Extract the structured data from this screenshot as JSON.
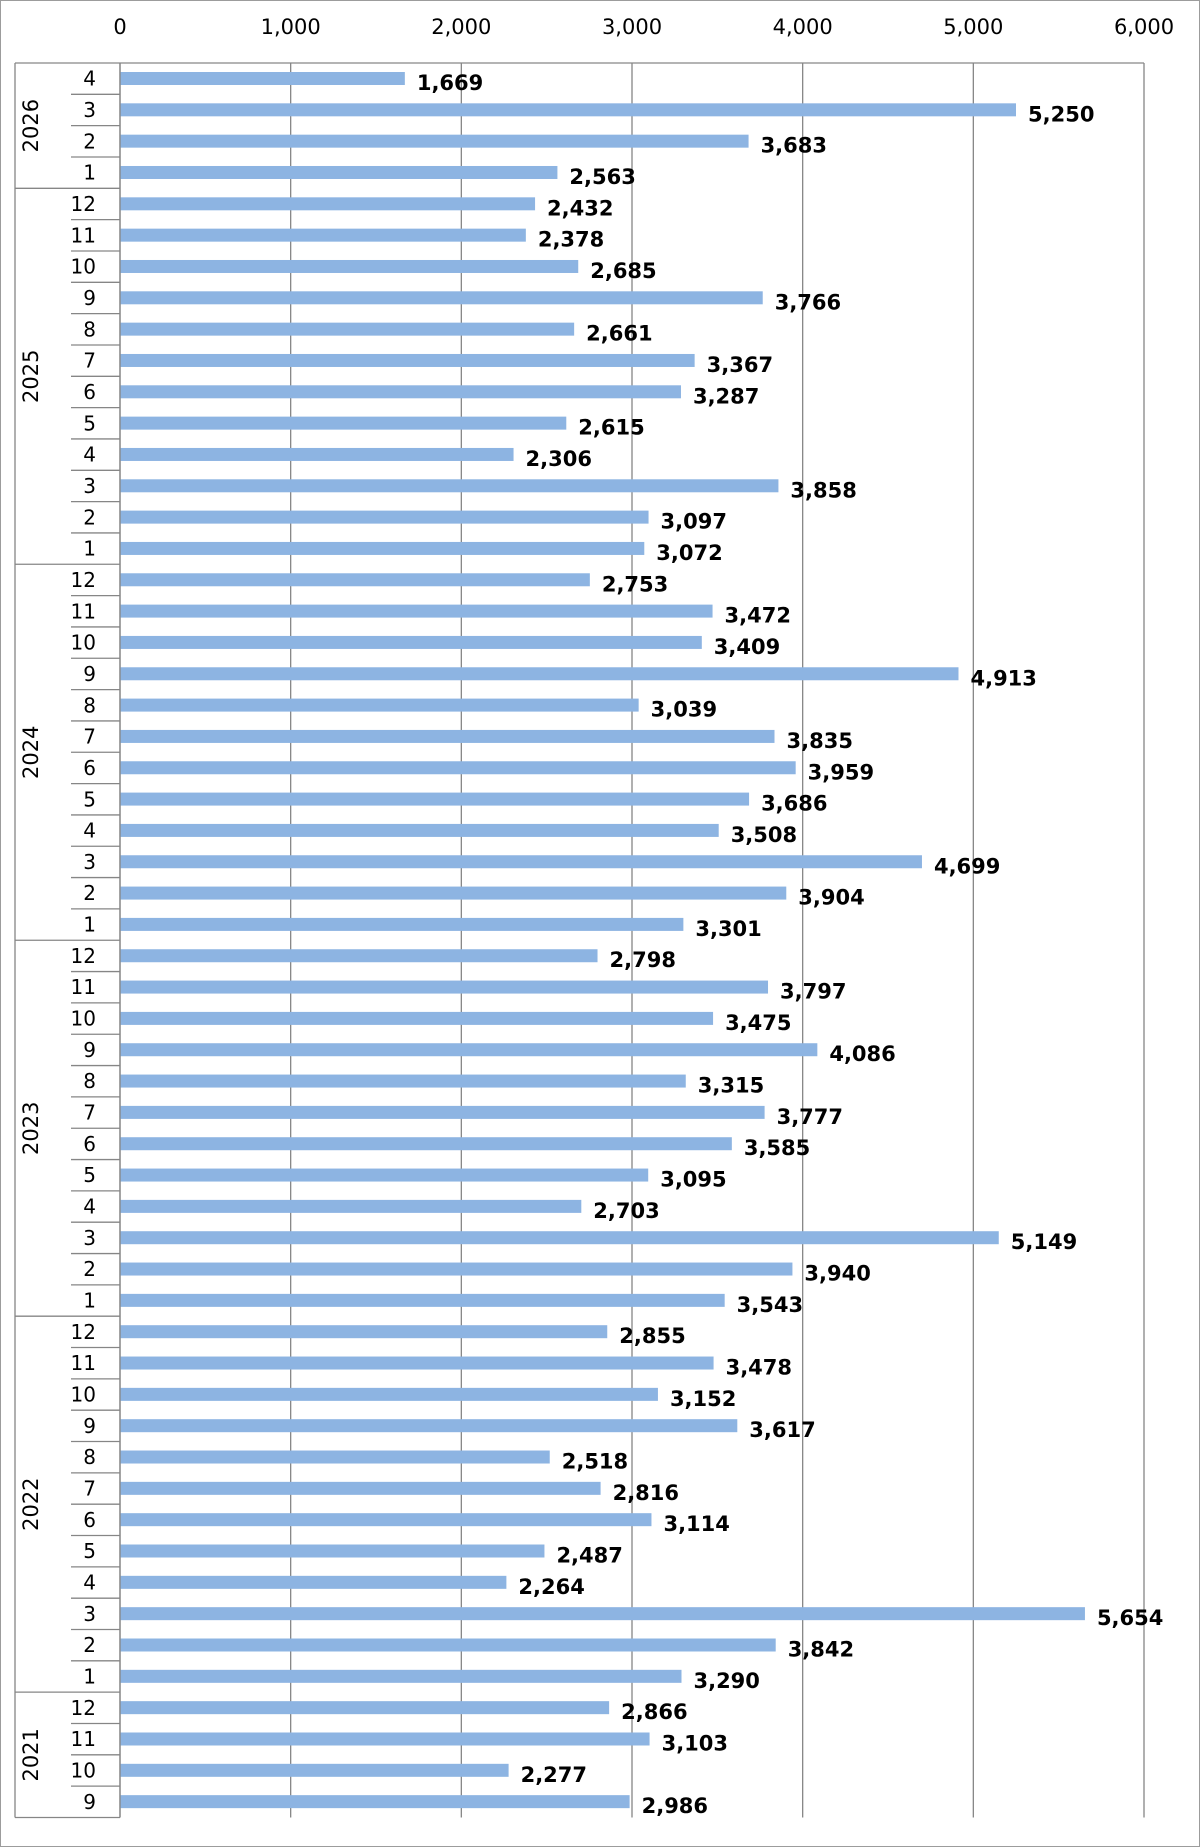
{
  "chart_data": {
    "type": "bar",
    "orientation": "horizontal",
    "title": "",
    "xlabel": "",
    "ylabel": "",
    "xlim": [
      0,
      6000
    ],
    "x_ticks": [
      0,
      1000,
      2000,
      3000,
      4000,
      5000,
      6000
    ],
    "x_tick_labels": [
      "0",
      "1,000",
      "2,000",
      "3,000",
      "4,000",
      "5,000",
      "6,000"
    ],
    "x_axis_position": "top",
    "grid": true,
    "legend": "none",
    "bar_color": "#8db4e2",
    "groups": [
      {
        "year": "2026",
        "months": [
          "4",
          "3",
          "2",
          "1"
        ],
        "values": [
          1669,
          5250,
          3683,
          2563
        ],
        "labels": [
          "1,669",
          "5,250",
          "3,683",
          "2,563"
        ]
      },
      {
        "year": "2025",
        "months": [
          "12",
          "11",
          "10",
          "9",
          "8",
          "7",
          "6",
          "5",
          "4",
          "3",
          "2",
          "1"
        ],
        "values": [
          2432,
          2378,
          2685,
          3766,
          2661,
          3367,
          3287,
          2615,
          2306,
          3858,
          3097,
          3072
        ],
        "labels": [
          "2,432",
          "2,378",
          "2,685",
          "3,766",
          "2,661",
          "3,367",
          "3,287",
          "2,615",
          "2,306",
          "3,858",
          "3,097",
          "3,072"
        ]
      },
      {
        "year": "2024",
        "months": [
          "12",
          "11",
          "10",
          "9",
          "8",
          "7",
          "6",
          "5",
          "4",
          "3",
          "2",
          "1"
        ],
        "values": [
          2753,
          3472,
          3409,
          4913,
          3039,
          3835,
          3959,
          3686,
          3508,
          4699,
          3904,
          3301
        ],
        "labels": [
          "2,753",
          "3,472",
          "3,409",
          "4,913",
          "3,039",
          "3,835",
          "3,959",
          "3,686",
          "3,508",
          "4,699",
          "3,904",
          "3,301"
        ]
      },
      {
        "year": "2023",
        "months": [
          "12",
          "11",
          "10",
          "9",
          "8",
          "7",
          "6",
          "5",
          "4",
          "3",
          "2",
          "1"
        ],
        "values": [
          2798,
          3797,
          3475,
          4086,
          3315,
          3777,
          3585,
          3095,
          2703,
          5149,
          3940,
          3543
        ],
        "labels": [
          "2,798",
          "3,797",
          "3,475",
          "4,086",
          "3,315",
          "3,777",
          "3,585",
          "3,095",
          "2,703",
          "5,149",
          "3,940",
          "3,543"
        ]
      },
      {
        "year": "2022",
        "months": [
          "12",
          "11",
          "10",
          "9",
          "8",
          "7",
          "6",
          "5",
          "4",
          "3",
          "2",
          "1"
        ],
        "values": [
          2855,
          3478,
          3152,
          3617,
          2518,
          2816,
          3114,
          2487,
          2264,
          5654,
          3842,
          3290
        ],
        "labels": [
          "2,855",
          "3,478",
          "3,152",
          "3,617",
          "2,518",
          "2,816",
          "3,114",
          "2,487",
          "2,264",
          "5,654",
          "3,842",
          "3,290"
        ]
      },
      {
        "year": "2021",
        "months": [
          "12",
          "11",
          "10",
          "9"
        ],
        "values": [
          2866,
          3103,
          2277,
          2986
        ],
        "labels": [
          "2,866",
          "3,103",
          "2,277",
          "2,986"
        ]
      }
    ]
  }
}
